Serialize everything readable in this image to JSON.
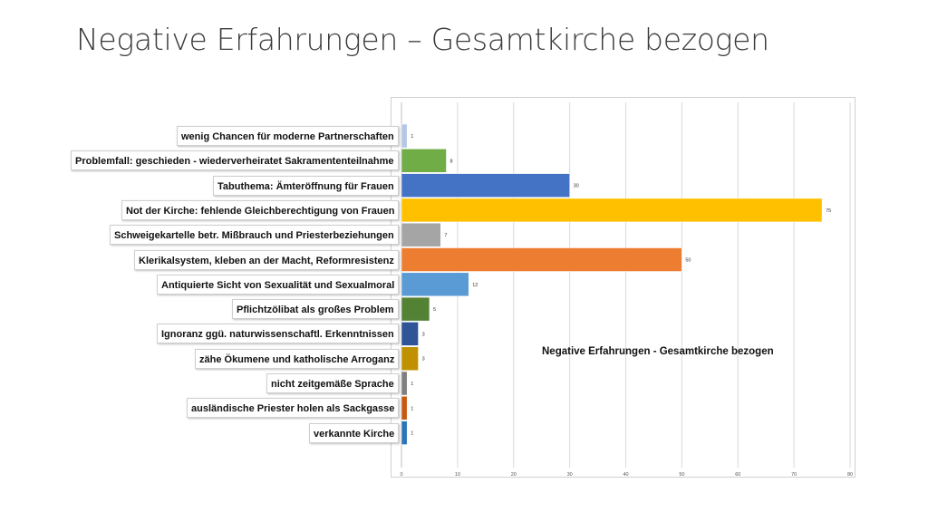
{
  "slide_title": "Negative Erfahrungen – Gesamtkirche bezogen",
  "chart_data": {
    "type": "bar",
    "orientation": "horizontal",
    "title": "Negative Erfahrungen - Gesamtkirche bezogen",
    "xlim": [
      0,
      80
    ],
    "x_ticks": [
      "0",
      "10",
      "20",
      "30",
      "40",
      "50",
      "60",
      "70",
      "80"
    ],
    "grid": true,
    "categories": [
      "wenig Chancen für moderne Partnerschaften",
      "Problemfall: geschieden - wiederverheiratet Sakramententeilnahme",
      "Tabuthema: Ämteröffnung für Frauen",
      "Not der Kirche: fehlende Gleichberechtigung von Frauen",
      "Schweigekartelle betr. Mißbrauch und Priesterbeziehungen",
      "Klerikalsystem, kleben an der Macht, Reformresistenz",
      "Antiquierte Sicht von Sexualität und Sexualmoral",
      "Pflichtzölibat als großes Problem",
      "Ignoranz ggü. naturwissenschaftl. Erkenntnissen",
      "zähe Ökumene und katholische Arroganz",
      "nicht zeitgemäße Sprache",
      "ausländische Priester holen als Sackgasse",
      "verkannte Kirche"
    ],
    "values": [
      1,
      8,
      30,
      75,
      7,
      50,
      12,
      5,
      3,
      3,
      1,
      1,
      1
    ],
    "value_labels": [
      "1",
      "8",
      "30",
      "75",
      "7",
      "50",
      "12",
      "5",
      "3",
      "3",
      "1",
      "1",
      "1"
    ],
    "colors": [
      "#b4c7e7",
      "#70ad47",
      "#4472c4",
      "#ffc000",
      "#a5a5a5",
      "#ed7d31",
      "#5b9bd5",
      "#548235",
      "#2f5597",
      "#bf9000",
      "#7f7f7f",
      "#c55a11",
      "#2e75b6"
    ]
  }
}
